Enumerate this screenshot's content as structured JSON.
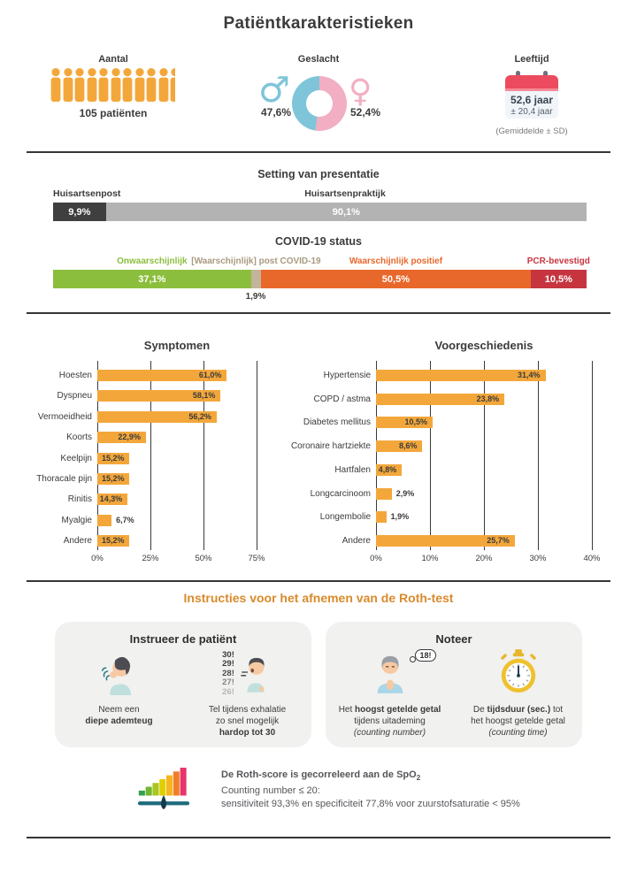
{
  "title": "Patiëntkarakteristieken",
  "colors": {
    "accent_orange": "#F3A73B",
    "male_blue": "#7FC5D9",
    "female_pink": "#F2AEC2",
    "dark": "#3B3B3B",
    "calendar_red": "#EC4B5F",
    "card_bg": "#F1F1EF",
    "roth_title_orange": "#D98A2B",
    "teal": "#1E6B7C"
  },
  "demographics": {
    "aantal": {
      "label": "Aantal",
      "value": "105 patiënten",
      "icon_count": 10.5
    },
    "geslacht": {
      "label": "Geslacht",
      "male_symbol": "♂",
      "female_symbol": "♀"
    },
    "leeftijd": {
      "label": "Leeftijd",
      "mean": "52,6 jaar",
      "sd": "± 20,4 jaar",
      "note": "(Gemiddelde ± SD)"
    }
  },
  "chart_data": [
    {
      "id": "gender",
      "type": "pie",
      "donut": true,
      "legend": [
        "♂",
        "♀"
      ],
      "values": [
        47.6,
        52.4
      ],
      "value_labels": [
        "47,6%",
        "52,4%"
      ],
      "colors": [
        "#7FC5D9",
        "#F2AEC2"
      ]
    },
    {
      "id": "setting",
      "type": "bar-stacked",
      "title": "Setting van presentatie",
      "segments": [
        {
          "label": "Huisartsenpost",
          "text": "9,9%",
          "value": 9.9,
          "color": "#3F3F3F",
          "text_inside": true
        },
        {
          "label": "Huisartsenpraktijk",
          "text": "90,1%",
          "value": 90.1,
          "color": "#B3B3B3",
          "text_inside": true
        }
      ]
    },
    {
      "id": "covid",
      "type": "bar-stacked",
      "title": "COVID-19 status",
      "segments": [
        {
          "label": "Onwaarschijnlijk",
          "text": "37,1%",
          "value": 37.1,
          "color": "#8CBE3D",
          "label_color": "#8CBE3D",
          "text_inside": true
        },
        {
          "label": "[Waarschijnlijk] post COVID-19",
          "text": "1,9%",
          "value": 1.9,
          "color": "#C3B49A",
          "label_color": "#A89A7E",
          "text_inside": false
        },
        {
          "label": "Waarschijnlijk positief",
          "text": "50,5%",
          "value": 50.5,
          "color": "#E8682B",
          "label_color": "#E8682B",
          "text_inside": true
        },
        {
          "label": "PCR-bevestigd",
          "text": "10,5%",
          "value": 10.5,
          "color": "#C6353F",
          "label_color": "#C6353F",
          "text_inside": true
        }
      ]
    },
    {
      "id": "symptomen",
      "type": "bar",
      "title": "Symptomen",
      "categories": [
        "Hoesten",
        "Dyspneu",
        "Vermoeidheid",
        "Koorts",
        "Keelpijn",
        "Thoracale pijn",
        "Rinitis",
        "Myalgie",
        "Andere"
      ],
      "values": [
        61.0,
        58.1,
        56.2,
        22.9,
        15.2,
        15.2,
        14.3,
        6.7,
        15.2
      ],
      "value_labels": [
        "61,0%",
        "58,1%",
        "56,2%",
        "22,9%",
        "15,2%",
        "15,2%",
        "14,3%",
        "6,7%",
        "15,2%"
      ],
      "xlim": [
        0,
        75
      ],
      "xticks": [
        0,
        25,
        50,
        75
      ],
      "xtick_labels": [
        "0%",
        "25%",
        "50%",
        "75%"
      ],
      "bar_color": "#F3A73B",
      "grid": true
    },
    {
      "id": "voorgeschiedenis",
      "type": "bar",
      "title": "Voorgeschiedenis",
      "categories": [
        "Hypertensie",
        "COPD / astma",
        "Diabetes mellitus",
        "Coronaire hartziekte",
        "Hartfalen",
        "Longcarcinoom",
        "Longembolie",
        "Andere"
      ],
      "values": [
        31.4,
        23.8,
        10.5,
        8.6,
        4.8,
        2.9,
        1.9,
        25.7
      ],
      "value_labels": [
        "31,4%",
        "23,8%",
        "10,5%",
        "8,6%",
        "4,8%",
        "2,9%",
        "1,9%",
        "25,7%"
      ],
      "xlim": [
        0,
        40
      ],
      "xticks": [
        0,
        10,
        20,
        30,
        40
      ],
      "xtick_labels": [
        "0%",
        "10%",
        "20%",
        "30%",
        "40%"
      ],
      "bar_color": "#F3A73B",
      "grid": true
    }
  ],
  "instructions": {
    "title": "Instructies voor het afnemen van de Roth-test",
    "cards": [
      {
        "title": "Instrueer de patiënt",
        "items": [
          {
            "icon": "breathing-person-icon",
            "lines": [
              [
                {
                  "t": "Neem een"
                }
              ],
              [
                {
                  "t": "diepe ademteug",
                  "b": true
                }
              ]
            ]
          },
          {
            "icon": "counting-person-icon",
            "countdown": [
              "30!",
              "29!",
              "28!",
              "27!",
              "26!"
            ],
            "lines": [
              [
                {
                  "t": "Tel tijdens exhalatie"
                }
              ],
              [
                {
                  "t": "zo snel mogelijk"
                }
              ],
              [
                {
                  "t": "hardop tot 30",
                  "b": true
                }
              ]
            ]
          }
        ]
      },
      {
        "title": "Noteer",
        "items": [
          {
            "icon": "thinking-person-icon",
            "bubble": "18!",
            "lines": [
              [
                {
                  "t": "Het "
                },
                {
                  "t": "hoogst getelde getal",
                  "b": true
                }
              ],
              [
                {
                  "t": "tijdens uitademing"
                }
              ],
              [
                {
                  "t": "(counting number)",
                  "i": true
                }
              ]
            ]
          },
          {
            "icon": "stopwatch-icon",
            "lines": [
              [
                {
                  "t": "De "
                },
                {
                  "t": "tijdsduur (sec.) ",
                  "b": true
                },
                {
                  "t": "tot"
                }
              ],
              [
                {
                  "t": "het hoogst getelde getal"
                }
              ],
              [
                {
                  "t": "(counting time)",
                  "i": true
                }
              ]
            ]
          }
        ]
      }
    ]
  },
  "roth_note": {
    "line1": [
      {
        "t": "De Roth-score is gecorreleerd aan de SpO",
        "b": true
      },
      {
        "t": "2",
        "b": true,
        "sub": true
      }
    ],
    "line2": "Counting number ≤ 20:",
    "line3": "sensitiviteit 93,3% en specificiteit 77,8% voor zuurstofsaturatie < 95%"
  }
}
